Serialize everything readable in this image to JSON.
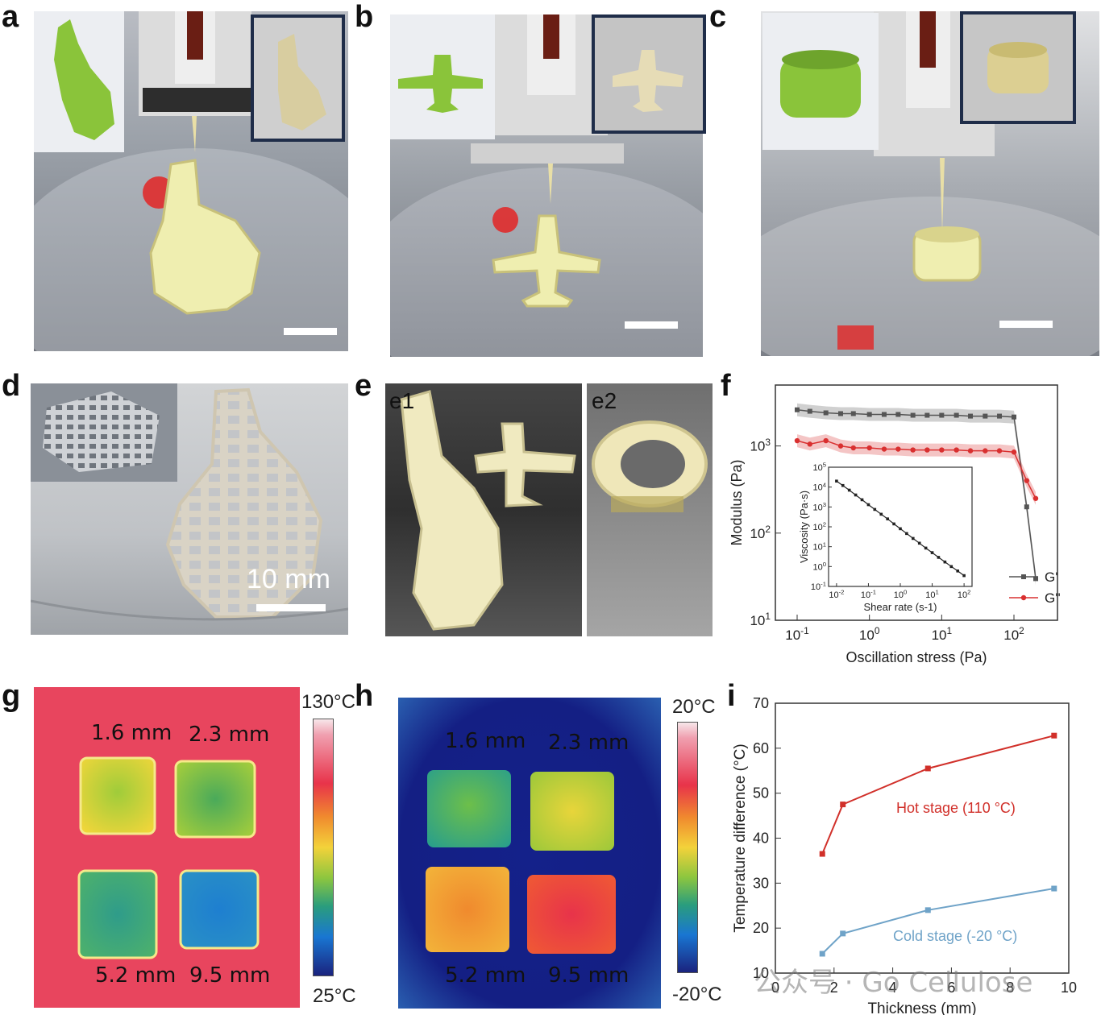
{
  "panels": {
    "a": "a",
    "b": "b",
    "c": "c",
    "d": "d",
    "e": "e",
    "f": "f",
    "g": "g",
    "h": "h",
    "i": "i"
  },
  "panel_e": {
    "e1": "e1",
    "e2": "e2"
  },
  "panel_d": {
    "scale_text": "10 mm"
  },
  "panel_g": {
    "labels": [
      "1.6 mm",
      "2.3 mm",
      "5.2 mm",
      "9.5 mm"
    ],
    "colorbar_max": "130°C",
    "colorbar_min": "25°C"
  },
  "panel_h": {
    "labels": [
      "1.6 mm",
      "2.3 mm",
      "5.2 mm",
      "9.5 mm"
    ],
    "colorbar_max": "20°C",
    "colorbar_min": "-20°C"
  },
  "chart_data": [
    {
      "panel": "f",
      "type": "line",
      "xscale": "log",
      "yscale": "log",
      "xlabel": "Oscillation stress (Pa)",
      "ylabel": "Modulus (Pa)",
      "xticks": [
        "10-1",
        "100",
        "101",
        "102"
      ],
      "yticks": [
        "101",
        "102",
        "103"
      ],
      "xlim": [
        0.05,
        400
      ],
      "ylim": [
        10,
        5000
      ],
      "series": [
        {
          "name": "G'",
          "color": "#555555",
          "x": [
            0.1,
            0.15,
            0.25,
            0.4,
            0.6,
            1.0,
            1.6,
            2.5,
            4,
            6.3,
            10,
            16,
            25,
            40,
            63,
            100,
            150,
            200
          ],
          "y": [
            2600,
            2500,
            2400,
            2350,
            2350,
            2300,
            2300,
            2300,
            2250,
            2250,
            2250,
            2250,
            2200,
            2200,
            2200,
            2150,
            200,
            30
          ]
        },
        {
          "name": "G''",
          "color": "#d93030",
          "x": [
            0.1,
            0.15,
            0.25,
            0.4,
            0.6,
            1.0,
            1.6,
            2.5,
            4,
            6.3,
            10,
            16,
            25,
            40,
            63,
            100,
            150,
            200
          ],
          "y": [
            1150,
            1050,
            1150,
            1000,
            950,
            950,
            920,
            920,
            900,
            900,
            900,
            900,
            880,
            880,
            880,
            850,
            400,
            250
          ]
        }
      ],
      "inset": {
        "type": "line",
        "xscale": "log",
        "yscale": "log",
        "xlabel": "Shear rate (s-1)",
        "ylabel": "Viscosity (Pa·s)",
        "xticks": [
          "10-2",
          "10-1",
          "100",
          "101",
          "102"
        ],
        "yticks": [
          "10-1",
          "100",
          "101",
          "102",
          "103",
          "104",
          "105"
        ],
        "x": [
          0.01,
          0.0158,
          0.0251,
          0.0398,
          0.0631,
          0.1,
          0.158,
          0.251,
          0.398,
          0.631,
          1,
          1.58,
          2.51,
          3.98,
          6.31,
          10,
          15.8,
          25.1,
          39.8,
          63.1,
          100
        ],
        "y": [
          20000,
          12000,
          7000,
          4000,
          2300,
          1300,
          750,
          430,
          250,
          140,
          80,
          46,
          26,
          15,
          8.5,
          5,
          2.9,
          1.7,
          1.0,
          0.6,
          0.35
        ]
      }
    },
    {
      "panel": "i",
      "type": "line",
      "xlabel": "Thickness (mm)",
      "ylabel": "Temperature difference (°C)",
      "xlim": [
        0,
        10
      ],
      "ylim": [
        10,
        70
      ],
      "xticks": [
        0,
        2,
        4,
        6,
        8,
        10
      ],
      "yticks": [
        10,
        20,
        30,
        40,
        50,
        60,
        70
      ],
      "series": [
        {
          "name": "Hot stage  (110 °C)",
          "color": "#d1302a",
          "x": [
            1.6,
            2.3,
            5.2,
            9.5
          ],
          "y": [
            36.5,
            47.5,
            55.5,
            62.8
          ]
        },
        {
          "name": "Cold stage (-20 °C)",
          "color": "#6fa3c8",
          "x": [
            1.6,
            2.3,
            5.2,
            9.5
          ],
          "y": [
            14.3,
            18.8,
            24,
            28.8
          ]
        }
      ]
    }
  ],
  "watermark": "公众号 · Go Cellulose",
  "colors": {
    "gprime": "#555555",
    "gdoubleprime": "#d93030",
    "hot": "#d1302a",
    "cold": "#6fa3c8"
  }
}
